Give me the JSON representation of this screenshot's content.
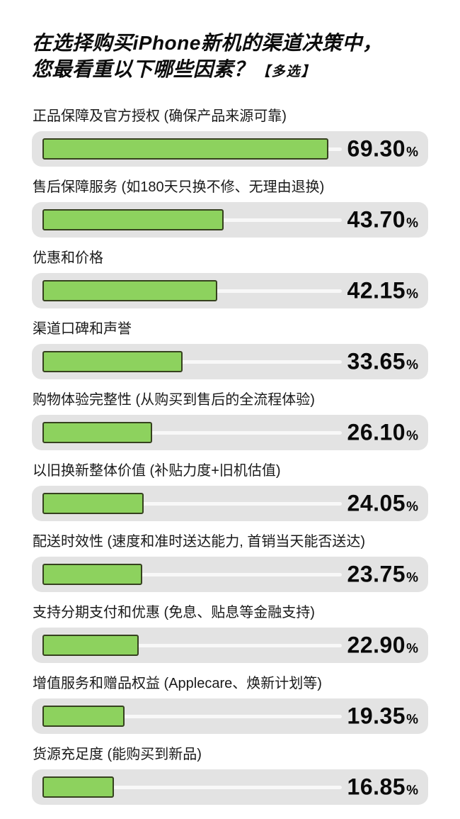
{
  "title": {
    "line1": "在选择购买iPhone新机的渠道决策中，",
    "line2": "您最看重以下哪些因素？",
    "tag": "【多选】"
  },
  "colors": {
    "bar_fill": "#8dd25e",
    "bar_border": "#36411f",
    "track": "#e3e3e3",
    "remainder_line": "#f8f8f8",
    "background": "#ffffff",
    "text": "#121212"
  },
  "chart_data": {
    "type": "bar",
    "orientation": "horizontal",
    "title": "在选择购买iPhone新机的渠道决策中，您最看重以下哪些因素？【多选】",
    "unit": "%",
    "xlim": [
      0,
      100
    ],
    "grid": false,
    "legend": false,
    "categories": [
      "正品保障及官方授权 (确保产品来源可靠)",
      "售后保障服务 (如180天只换不修、无理由退换)",
      "优惠和价格",
      "渠道口碑和声誉",
      "购物体验完整性 (从购买到售后的全流程体验)",
      "以旧换新整体价值 (补贴力度+旧机估值)",
      "配送时效性 (速度和准时送达能力, 首销当天能否送达)",
      "支持分期支付和优惠 (免息、贴息等金融支持)",
      "增值服务和赠品权益 (Applecare、焕新计划等)",
      "货源充足度 (能购买到新品)"
    ],
    "values": [
      69.3,
      43.7,
      42.15,
      33.65,
      26.1,
      24.05,
      23.75,
      22.9,
      19.35,
      16.85
    ],
    "value_labels": [
      "69.30",
      "43.70",
      "42.15",
      "33.65",
      "26.10",
      "24.05",
      "23.75",
      "22.90",
      "19.35",
      "16.85"
    ]
  }
}
